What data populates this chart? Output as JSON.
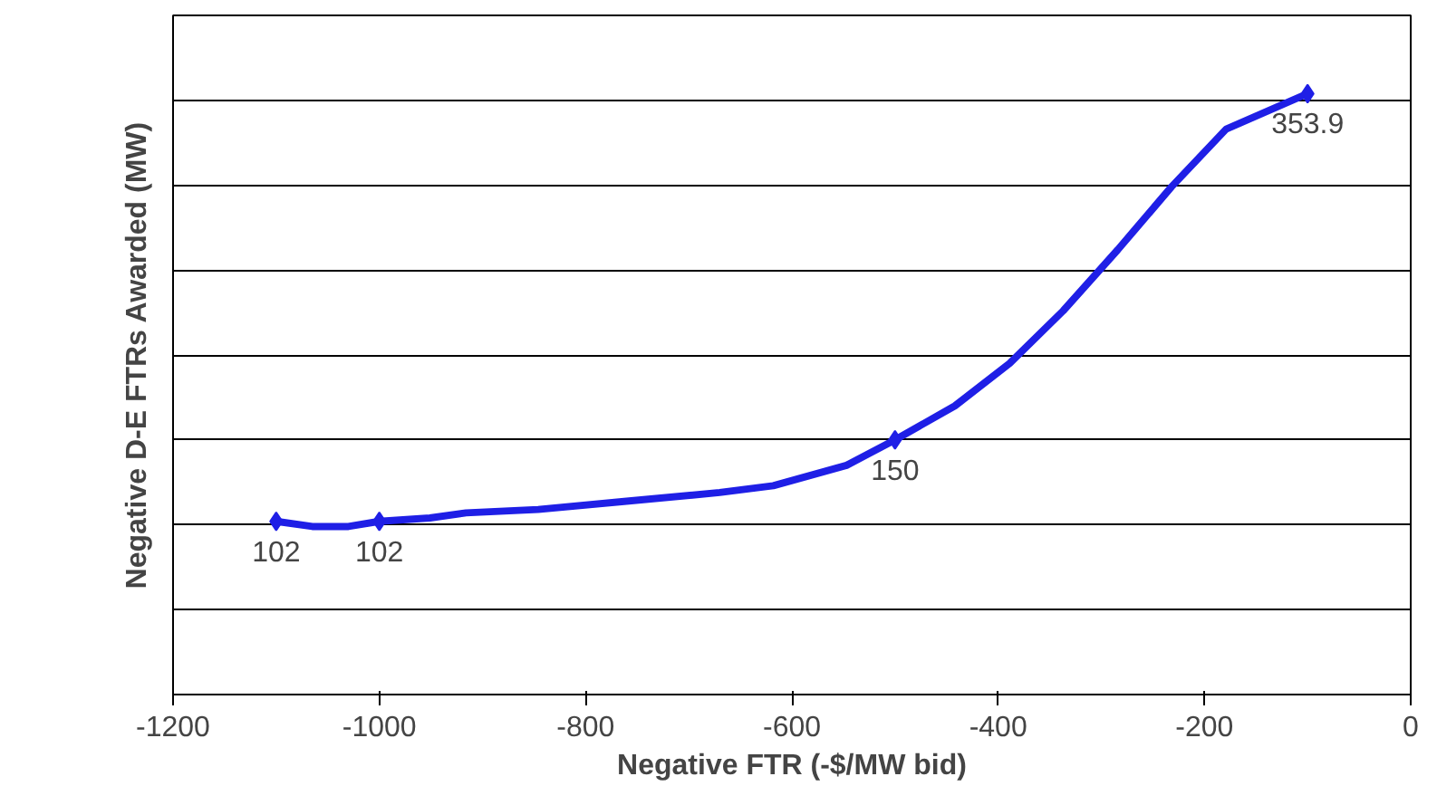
{
  "chart_data": {
    "type": "line",
    "xlabel": "Negative FTR (-$/MW bid)",
    "ylabel": "Negative D-E FTRs Awarded (MW)",
    "xlim": [
      -1200,
      0
    ],
    "xticks": [
      -1200,
      -1000,
      -800,
      -600,
      -400,
      -200,
      0
    ],
    "ylim": [
      0,
      400
    ],
    "yticks": [
      {
        "value": 0,
        "label": null
      },
      {
        "value": 50,
        "label": null
      },
      {
        "value": 100,
        "label": null
      },
      {
        "value": 150,
        "label": null
      },
      {
        "value": 200,
        "label": null
      },
      {
        "value": 250,
        "label": null
      },
      {
        "value": 300,
        "label": null
      },
      {
        "value": 350,
        "label": null
      },
      {
        "value": 400,
        "label": null
      }
    ],
    "tick_labels": "x",
    "grid": "y",
    "series": [
      {
        "color": "#1f1fe6",
        "marker": "none",
        "x": [
          -1100,
          -1065,
          -1030,
          -1000,
          -951,
          -916,
          -846,
          -758,
          -670,
          -618,
          -547,
          -500,
          -442,
          -389,
          -337,
          -284,
          -232,
          -179,
          -100
        ],
        "values": [
          102,
          99,
          99,
          102,
          104,
          107,
          109,
          114,
          119,
          123,
          135,
          150,
          170,
          195,
          226,
          262,
          299,
          333,
          353.9
        ]
      },
      {
        "type": "scatter",
        "color": "#1f1fe6",
        "marker": "diamond",
        "x": [
          -1100,
          -1000,
          -500,
          -100
        ],
        "values": [
          102,
          102,
          150,
          353.9
        ],
        "value_labels": [
          "102",
          "102",
          "150",
          "353.9"
        ]
      }
    ]
  }
}
